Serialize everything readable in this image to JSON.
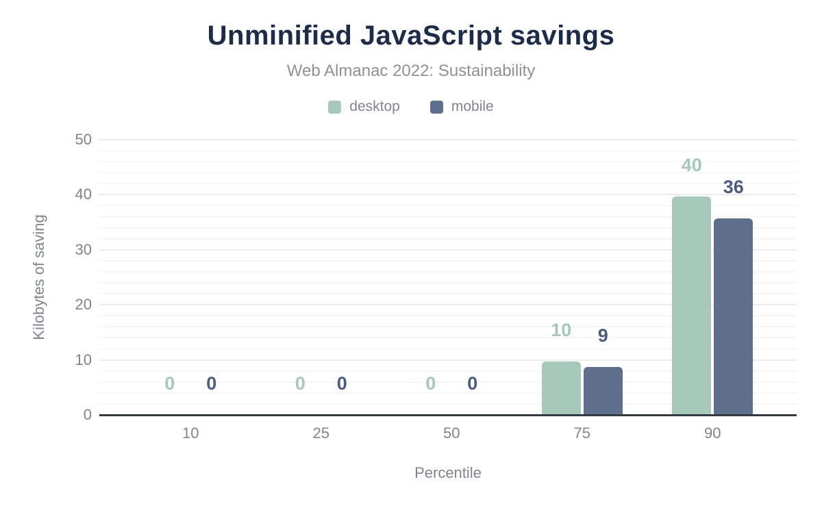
{
  "chart_data": {
    "type": "bar",
    "title": "Unminified JavaScript savings",
    "subtitle": "Web Almanac 2022: Sustainability",
    "xlabel": "Percentile",
    "ylabel": "Kilobytes of saving",
    "categories": [
      "10",
      "25",
      "50",
      "75",
      "90"
    ],
    "series": [
      {
        "name": "desktop",
        "color": "#a5c8b8",
        "label_color": "#a5c8b8",
        "values": [
          0,
          0,
          0,
          9.7,
          39.7
        ],
        "labels": [
          "0",
          "0",
          "0",
          "10",
          "40"
        ]
      },
      {
        "name": "mobile",
        "color": "#5f6e8a",
        "label_color": "#4c5c7c",
        "values": [
          0,
          0,
          0,
          8.7,
          35.7
        ],
        "labels": [
          "0",
          "0",
          "0",
          "9",
          "36"
        ]
      }
    ],
    "ylim": [
      0,
      50
    ],
    "yticks": [
      "0",
      "10",
      "20",
      "30",
      "40",
      "50"
    ],
    "grid": {
      "minor_step": 2,
      "major_step": 10,
      "minor_color": "#f6f6f6",
      "major_color": "#ebebeb"
    },
    "legend_position": "top"
  },
  "colors": {
    "title": "#1e2b49",
    "subtitle": "#8b9298",
    "axis_text": "#7d868f",
    "axis_line": "#333a42",
    "background": "#ffffff"
  }
}
